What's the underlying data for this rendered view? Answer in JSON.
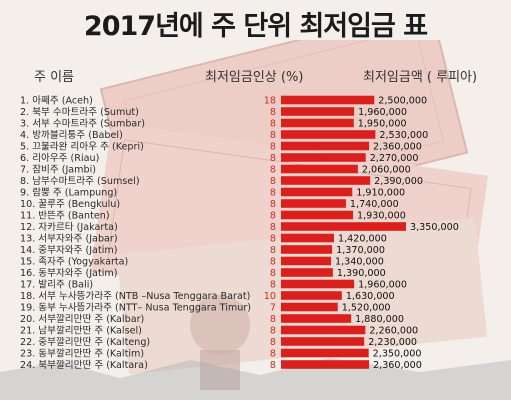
{
  "page": {
    "title": "2017년에 주 단위 최저임금 표",
    "headers": {
      "province": "주 이름",
      "increase": "최저임금인상 (%)",
      "wage": "최저임금액 ( 루피아)"
    }
  },
  "colors": {
    "bar": "#d9201d",
    "percent_text": "#d22a1e"
  },
  "chart_data": {
    "type": "bar",
    "orientation": "horizontal",
    "title": "2017년에 주 단위 최저임금 표",
    "categories": [
      "1. 아쩨주 (Aceh)",
      "2. 북부 수마트라주 (Sumut)",
      "3. 서부 수마트라주 (Sumbar)",
      "4. 방까블리퉁주 (Babel)",
      "5. 끄불라완 리아우 주 (Kepri)",
      "6. 리아우주 (Riau)",
      "7. 잠비주 (Jambi)",
      "8. 남부수마트라주 (Sumsel)",
      "9. 람뿡 주 (Lampung)",
      "10. 꿀루주 (Bengkulu)",
      "11. 반뜬주 (Banten)",
      "12. 자카르타 (Jakarta)",
      "13. 서부자와주 (Jabar)",
      "14. 중부자와주 (Jatim)",
      "15. 족자주 (Yogyakarta)",
      "16. 동부자와주 (Jatim)",
      "17. 발리주 (Bali)",
      "18. 서부 누사뜽가라주 (NTB –Nusa Tenggara Barat)",
      "19. 동부 누사뜽가라주 (NTT– Nusa Tenggara Timur)",
      "20. 서부깔리만딴 주 (Kalbar)",
      "21. 남부깔리만딴 주 (Kalsel)",
      "22. 중부깔리만딴 주 (Kalteng)",
      "23. 동부깔리만딴 주 (Kaltim)",
      "24. 북부깔리만딴 주 (Kaltara)"
    ],
    "increase_pct": [
      18,
      8,
      8,
      8,
      8,
      8,
      8,
      8,
      8,
      8,
      8,
      8,
      8,
      8,
      8,
      8,
      8,
      10,
      7,
      8,
      8,
      8,
      8,
      8
    ],
    "values": [
      2500000,
      1960000,
      1950000,
      2530000,
      2360000,
      2270000,
      2060000,
      2390000,
      1910000,
      1740000,
      1930000,
      3350000,
      1420000,
      1370000,
      1340000,
      1390000,
      1960000,
      1630000,
      1520000,
      1880000,
      2260000,
      2230000,
      2350000,
      2360000
    ],
    "value_labels": [
      "2,500,000",
      "1,960,000",
      "1,950,000",
      "2,530,000",
      "2,360,000",
      "2,270,000",
      "2,060,000",
      "2,390,000",
      "1,910,000",
      "1,740,000",
      "1,930,000",
      "3,350,000",
      "1,420,000",
      "1,370,000",
      "1,340,000",
      "1,390,000",
      "1,960,000",
      "1,630,000",
      "1,520,000",
      "1,880,000",
      "2,260,000",
      "2,230,000",
      "2,350,000",
      "2,360,000"
    ],
    "xlim": [
      0,
      3350000
    ]
  }
}
